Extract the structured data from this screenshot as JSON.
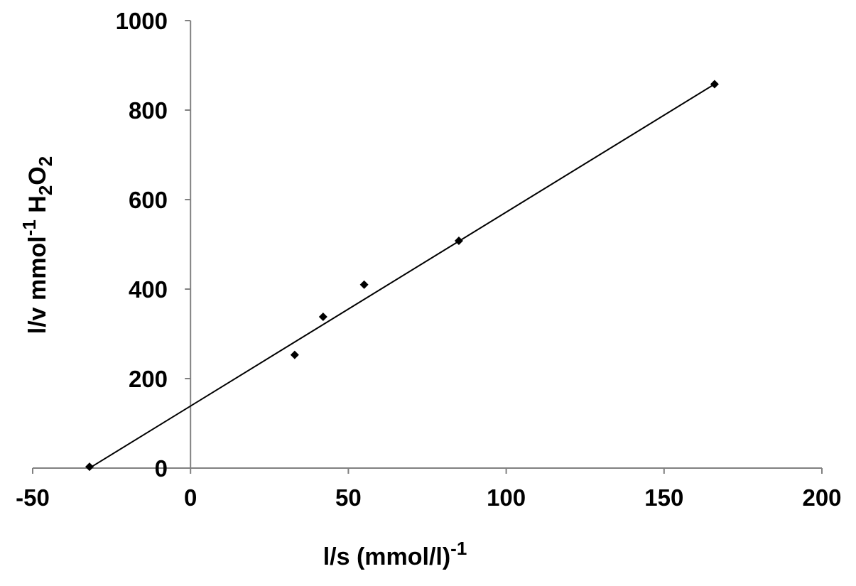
{
  "chart_data": {
    "type": "scatter",
    "title": "",
    "xlabel": "l/s (mmol/l)",
    "xlabel_superscript": "-1",
    "ylabel_parts": [
      "l/v mmol",
      "-1",
      " H",
      "2",
      "O",
      "2"
    ],
    "xlim": [
      -50,
      200
    ],
    "ylim": [
      0,
      1000
    ],
    "x_ticks": [
      -50,
      0,
      50,
      100,
      150,
      200
    ],
    "y_ticks": [
      0,
      200,
      400,
      600,
      800,
      1000
    ],
    "x_tick_labels": [
      "-50",
      "0",
      "50",
      "100",
      "150",
      "200"
    ],
    "y_tick_labels": [
      "0",
      "200",
      "400",
      "600",
      "800",
      "1000"
    ],
    "grid": false,
    "legend": "none",
    "series": [
      {
        "points": [
          {
            "x": -32,
            "y": 3
          },
          {
            "x": 33,
            "y": 253
          },
          {
            "x": 42,
            "y": 338
          },
          {
            "x": 55,
            "y": 410
          },
          {
            "x": 85,
            "y": 508
          },
          {
            "x": 166,
            "y": 858
          }
        ],
        "marker": "diamond",
        "color": "#000000"
      }
    ],
    "trendline": {
      "from": {
        "x": -32,
        "y": 0
      },
      "to": {
        "x": 166,
        "y": 858
      },
      "color": "#000000"
    }
  }
}
